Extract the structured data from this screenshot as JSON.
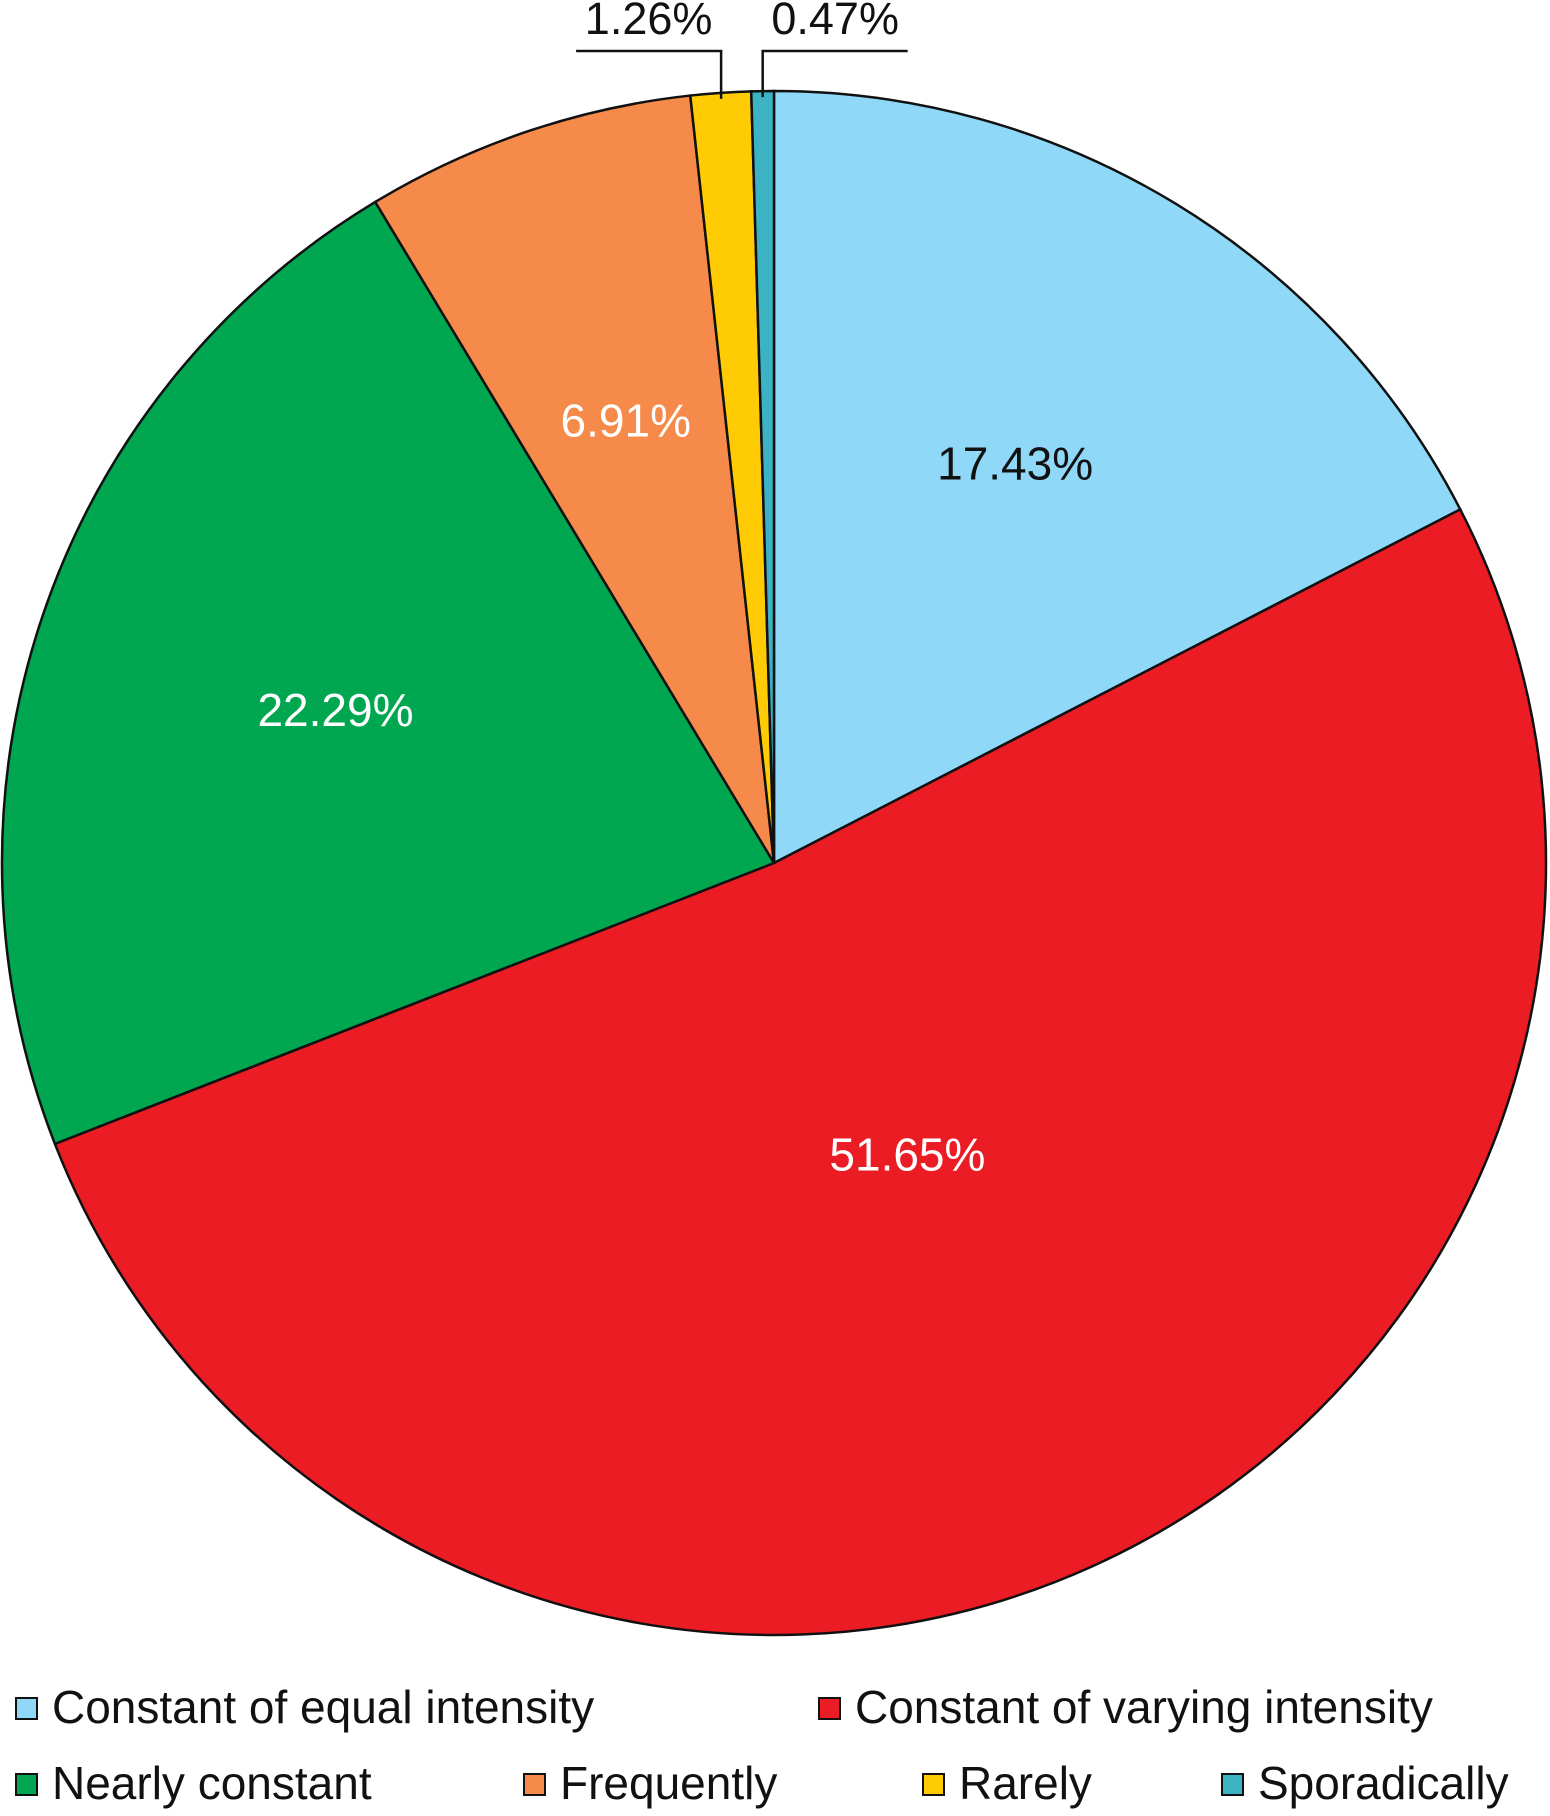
{
  "chart_data": {
    "type": "pie",
    "categories": [
      "Constant of equal intensity",
      "Constant of varying intensity",
      "Nearly constant",
      "Frequently",
      "Rarely",
      "Sporadically"
    ],
    "values": [
      17.43,
      51.65,
      22.29,
      6.91,
      1.26,
      0.47
    ],
    "value_labels": [
      "17.43%",
      "51.65%",
      "22.29%",
      "6.91%",
      "1.26%",
      "0.47%"
    ],
    "colors": [
      "#8fd8f7",
      "#ec1c24",
      "#00a650",
      "#f58a4b",
      "#ffcb05",
      "#3bb3c3"
    ]
  }
}
